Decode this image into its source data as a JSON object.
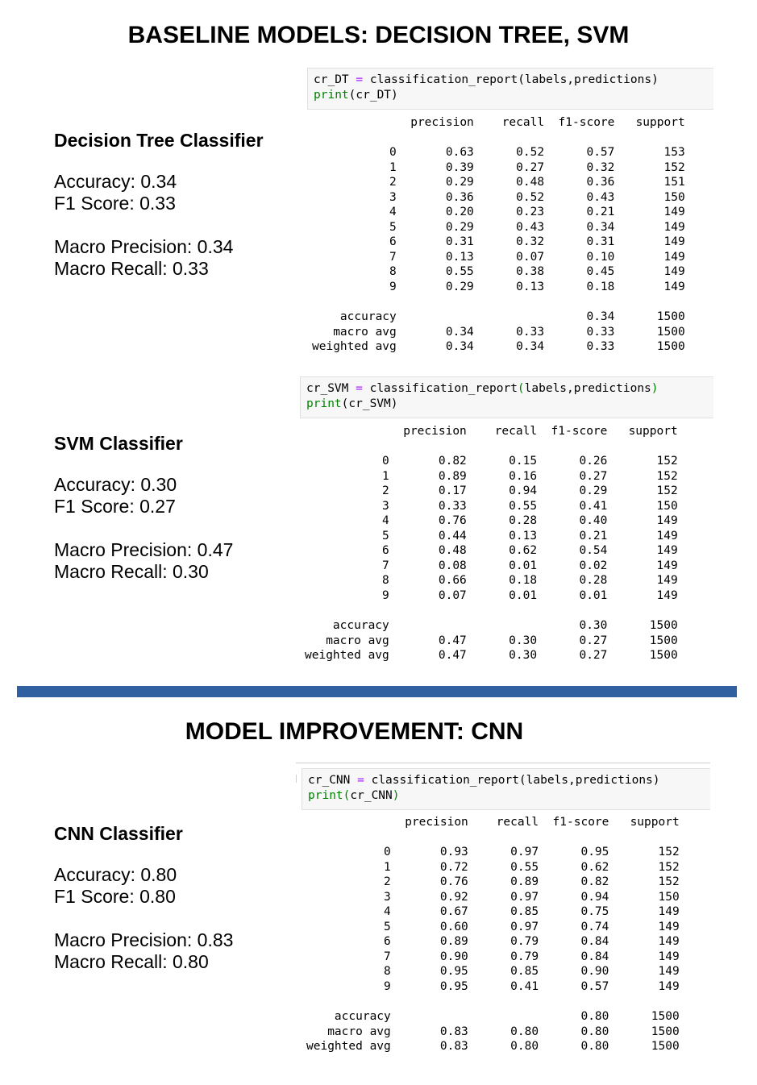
{
  "baseline": {
    "title": "BASELINE MODELS: DECISION TREE, SVM",
    "dt": {
      "heading": "Decision Tree Classifier",
      "accuracy": "Accuracy: 0.34",
      "f1": "F1 Score: 0.33",
      "macro_precision": "Macro Precision: 0.34",
      "macro_recall": "Macro Recall: 0.33",
      "code": {
        "line1_var": "cr_DT",
        "line1_op": "=",
        "line1_call": "classification_report",
        "line1_open": "(",
        "line1_args": "labels,predictions",
        "line1_close": ")",
        "line2_fn": "print",
        "line2_open": "(",
        "line2_arg": "cr_DT",
        "line2_close": ")"
      },
      "report": {
        "header": "              precision    recall  f1-score   support",
        "rows": [
          "           0       0.63      0.52      0.57       153",
          "           1       0.39      0.27      0.32       152",
          "           2       0.29      0.48      0.36       151",
          "           3       0.36      0.52      0.43       150",
          "           4       0.20      0.23      0.21       149",
          "           5       0.29      0.43      0.34       149",
          "           6       0.31      0.32      0.31       149",
          "           7       0.13      0.07      0.10       149",
          "           8       0.55      0.38      0.45       149",
          "           9       0.29      0.13      0.18       149"
        ],
        "accuracy": "    accuracy                           0.34      1500",
        "macro_avg": "   macro avg       0.34      0.33      0.33      1500",
        "weighted_avg": "weighted avg       0.34      0.34      0.33      1500"
      }
    },
    "svm": {
      "heading": "SVM Classifier",
      "accuracy": "Accuracy: 0.30",
      "f1": "F1 Score: 0.27",
      "macro_precision": "Macro Precision: 0.47",
      "macro_recall": "Macro Recall: 0.30",
      "code": {
        "line1_var": "cr_SVM",
        "line1_op": "=",
        "line1_call": "classification_report",
        "line1_open": "(",
        "line1_args": "labels,predictions",
        "line1_close": ")",
        "line2_fn": "print",
        "line2_open": "(",
        "line2_arg": "cr_SVM",
        "line2_close": ")"
      },
      "report": {
        "header": "              precision    recall  f1-score   support",
        "rows": [
          "           0       0.82      0.15      0.26       152",
          "           1       0.89      0.16      0.27       152",
          "           2       0.17      0.94      0.29       152",
          "           3       0.33      0.55      0.41       150",
          "           4       0.76      0.28      0.40       149",
          "           5       0.44      0.13      0.21       149",
          "           6       0.48      0.62      0.54       149",
          "           7       0.08      0.01      0.02       149",
          "           8       0.66      0.18      0.28       149",
          "           9       0.07      0.01      0.01       149"
        ],
        "accuracy": "    accuracy                           0.30      1500",
        "macro_avg": "   macro avg       0.47      0.30      0.27      1500",
        "weighted_avg": "weighted avg       0.47      0.30      0.27      1500"
      }
    }
  },
  "improvement": {
    "title": "MODEL IMPROVEMENT: CNN",
    "cnn": {
      "heading": "CNN Classifier",
      "accuracy": "Accuracy: 0.80",
      "f1": "F1 Score: 0.80",
      "macro_precision": "Macro Precision: 0.83",
      "macro_recall": "Macro Recall: 0.80",
      "code": {
        "line1_var": "cr_CNN",
        "line1_op": "=",
        "line1_call": "classification_report",
        "line1_open": "(",
        "line1_args": "labels,predictions",
        "line1_close": ")",
        "line2_fn": "print",
        "line2_open": "(",
        "line2_arg": "cr_CNN",
        "line2_close": ")"
      },
      "report": {
        "header": "              precision    recall  f1-score   support",
        "rows": [
          "           0       0.93      0.97      0.95       152",
          "           1       0.72      0.55      0.62       152",
          "           2       0.76      0.89      0.82       152",
          "           3       0.92      0.97      0.94       150",
          "           4       0.67      0.85      0.75       149",
          "           5       0.60      0.97      0.74       149",
          "           6       0.89      0.79      0.84       149",
          "           7       0.90      0.79      0.84       149",
          "           8       0.95      0.85      0.90       149",
          "           9       0.95      0.41      0.57       149"
        ],
        "accuracy": "    accuracy                           0.80      1500",
        "macro_avg": "   macro avg       0.83      0.80      0.80      1500",
        "weighted_avg": "weighted avg       0.83      0.80      0.80      1500"
      }
    }
  },
  "colors": {
    "divider": "#3060a0",
    "keyword_green": "#008000",
    "operator_purple": "#aa22ff"
  }
}
